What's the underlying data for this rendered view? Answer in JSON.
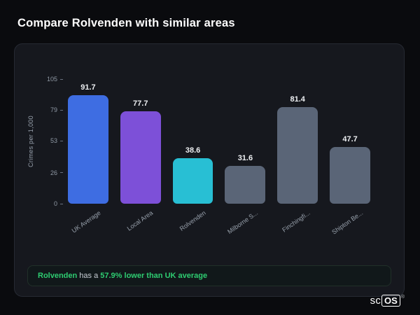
{
  "title": "Compare Rolvenden with similar areas",
  "chart_data": {
    "type": "bar",
    "categories": [
      "UK Average",
      "Local Area",
      "Rolvenden",
      "Milborne S...",
      "Finchingfi...",
      "Shipton Be..."
    ],
    "values": [
      91.7,
      77.7,
      38.6,
      31.6,
      81.4,
      47.7
    ],
    "value_labels": [
      "91.7",
      "77.7",
      "38.6",
      "31.6",
      "81.4",
      "47.7"
    ],
    "bar_colors": [
      "#3e6de2",
      "#7d50d8",
      "#28bfd4",
      "#5a6577",
      "#5a6577",
      "#5a6577"
    ],
    "title": "",
    "xlabel": "",
    "ylabel": "Crimes per 1,000",
    "yticks": [
      0,
      26,
      53,
      79,
      105
    ],
    "ylim": [
      0,
      105
    ],
    "grid": false,
    "legend": false
  },
  "note": {
    "area": "Rolvenden",
    "middle": " has a ",
    "stat": "57.9% lower than UK average"
  },
  "logo": {
    "prefix": "sc",
    "boxed": "OS",
    "reg": "®"
  }
}
